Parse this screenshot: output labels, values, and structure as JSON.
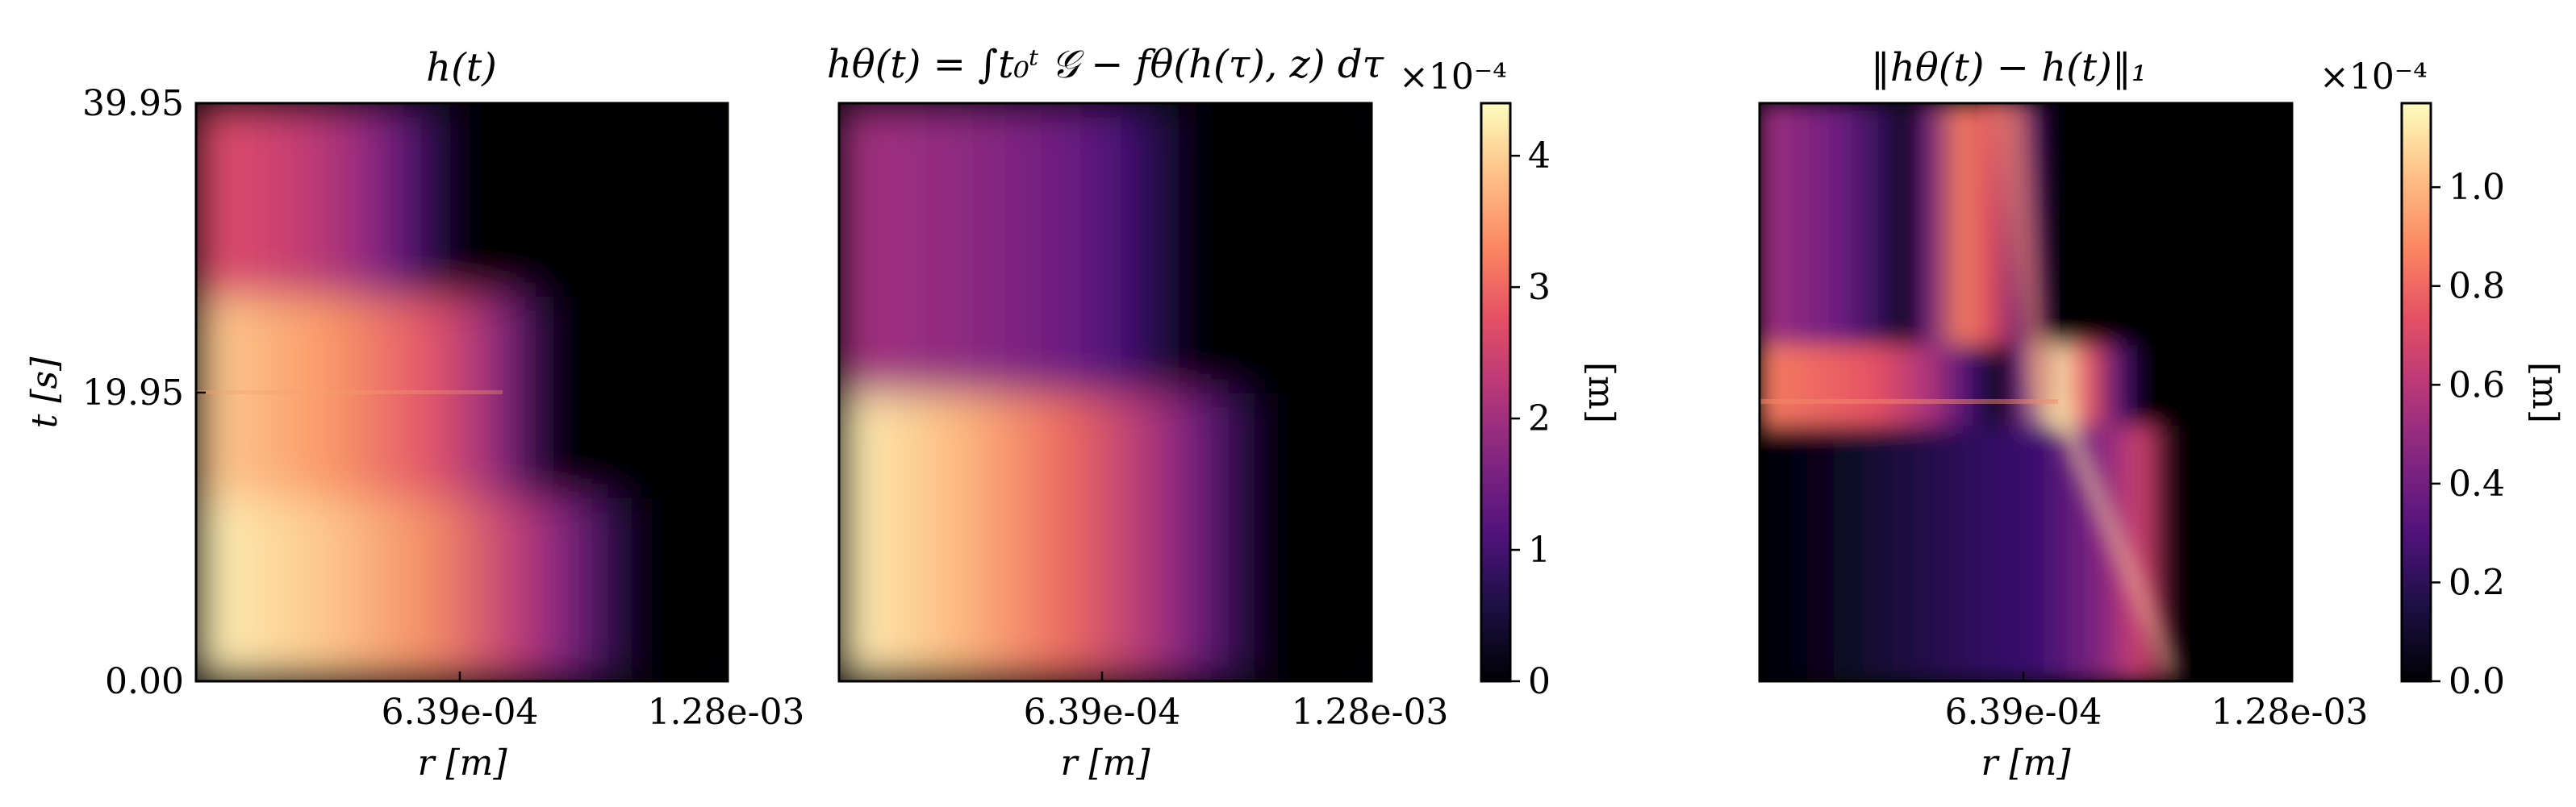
{
  "chart_data": [
    {
      "type": "heatmap",
      "title": "h(t)",
      "xlabel": "r [m]",
      "ylabel": "t [s]",
      "x_ticks": [
        "6.39e-04",
        "1.28e-03"
      ],
      "y_ticks": [
        "0.00",
        "19.95",
        "39.95"
      ],
      "xlim": [
        0,
        0.00128
      ],
      "ylim": [
        0,
        39.95
      ],
      "colormap": "magma",
      "colorbar": "shared"
    },
    {
      "type": "heatmap",
      "title": "hθ(t) = ∫t₀ᵗ 𝒢 − fθ(h(τ), z) dτ",
      "xlabel": "r [m]",
      "x_ticks": [
        "6.39e-04",
        "1.28e-03"
      ],
      "xlim": [
        0,
        0.00128
      ],
      "ylim": [
        0,
        39.95
      ],
      "colormap": "magma",
      "colorbar": {
        "label": "[m]",
        "scale_text": "×10⁻⁴",
        "ticks": [
          "0",
          "1",
          "2",
          "3",
          "4"
        ],
        "range": [
          0,
          4.4
        ]
      }
    },
    {
      "type": "heatmap",
      "title": "‖hθ(t) − h(t)‖₁",
      "xlabel": "r [m]",
      "x_ticks": [
        "6.39e-04",
        "1.28e-03"
      ],
      "xlim": [
        0,
        0.00128
      ],
      "ylim": [
        0,
        39.95
      ],
      "colormap": "magma",
      "colorbar": {
        "label": "[m]",
        "scale_text": "×10⁻⁴",
        "ticks": [
          "0.0",
          "0.2",
          "0.4",
          "0.6",
          "0.8",
          "1.0"
        ],
        "range": [
          0,
          1.17
        ]
      }
    }
  ]
}
